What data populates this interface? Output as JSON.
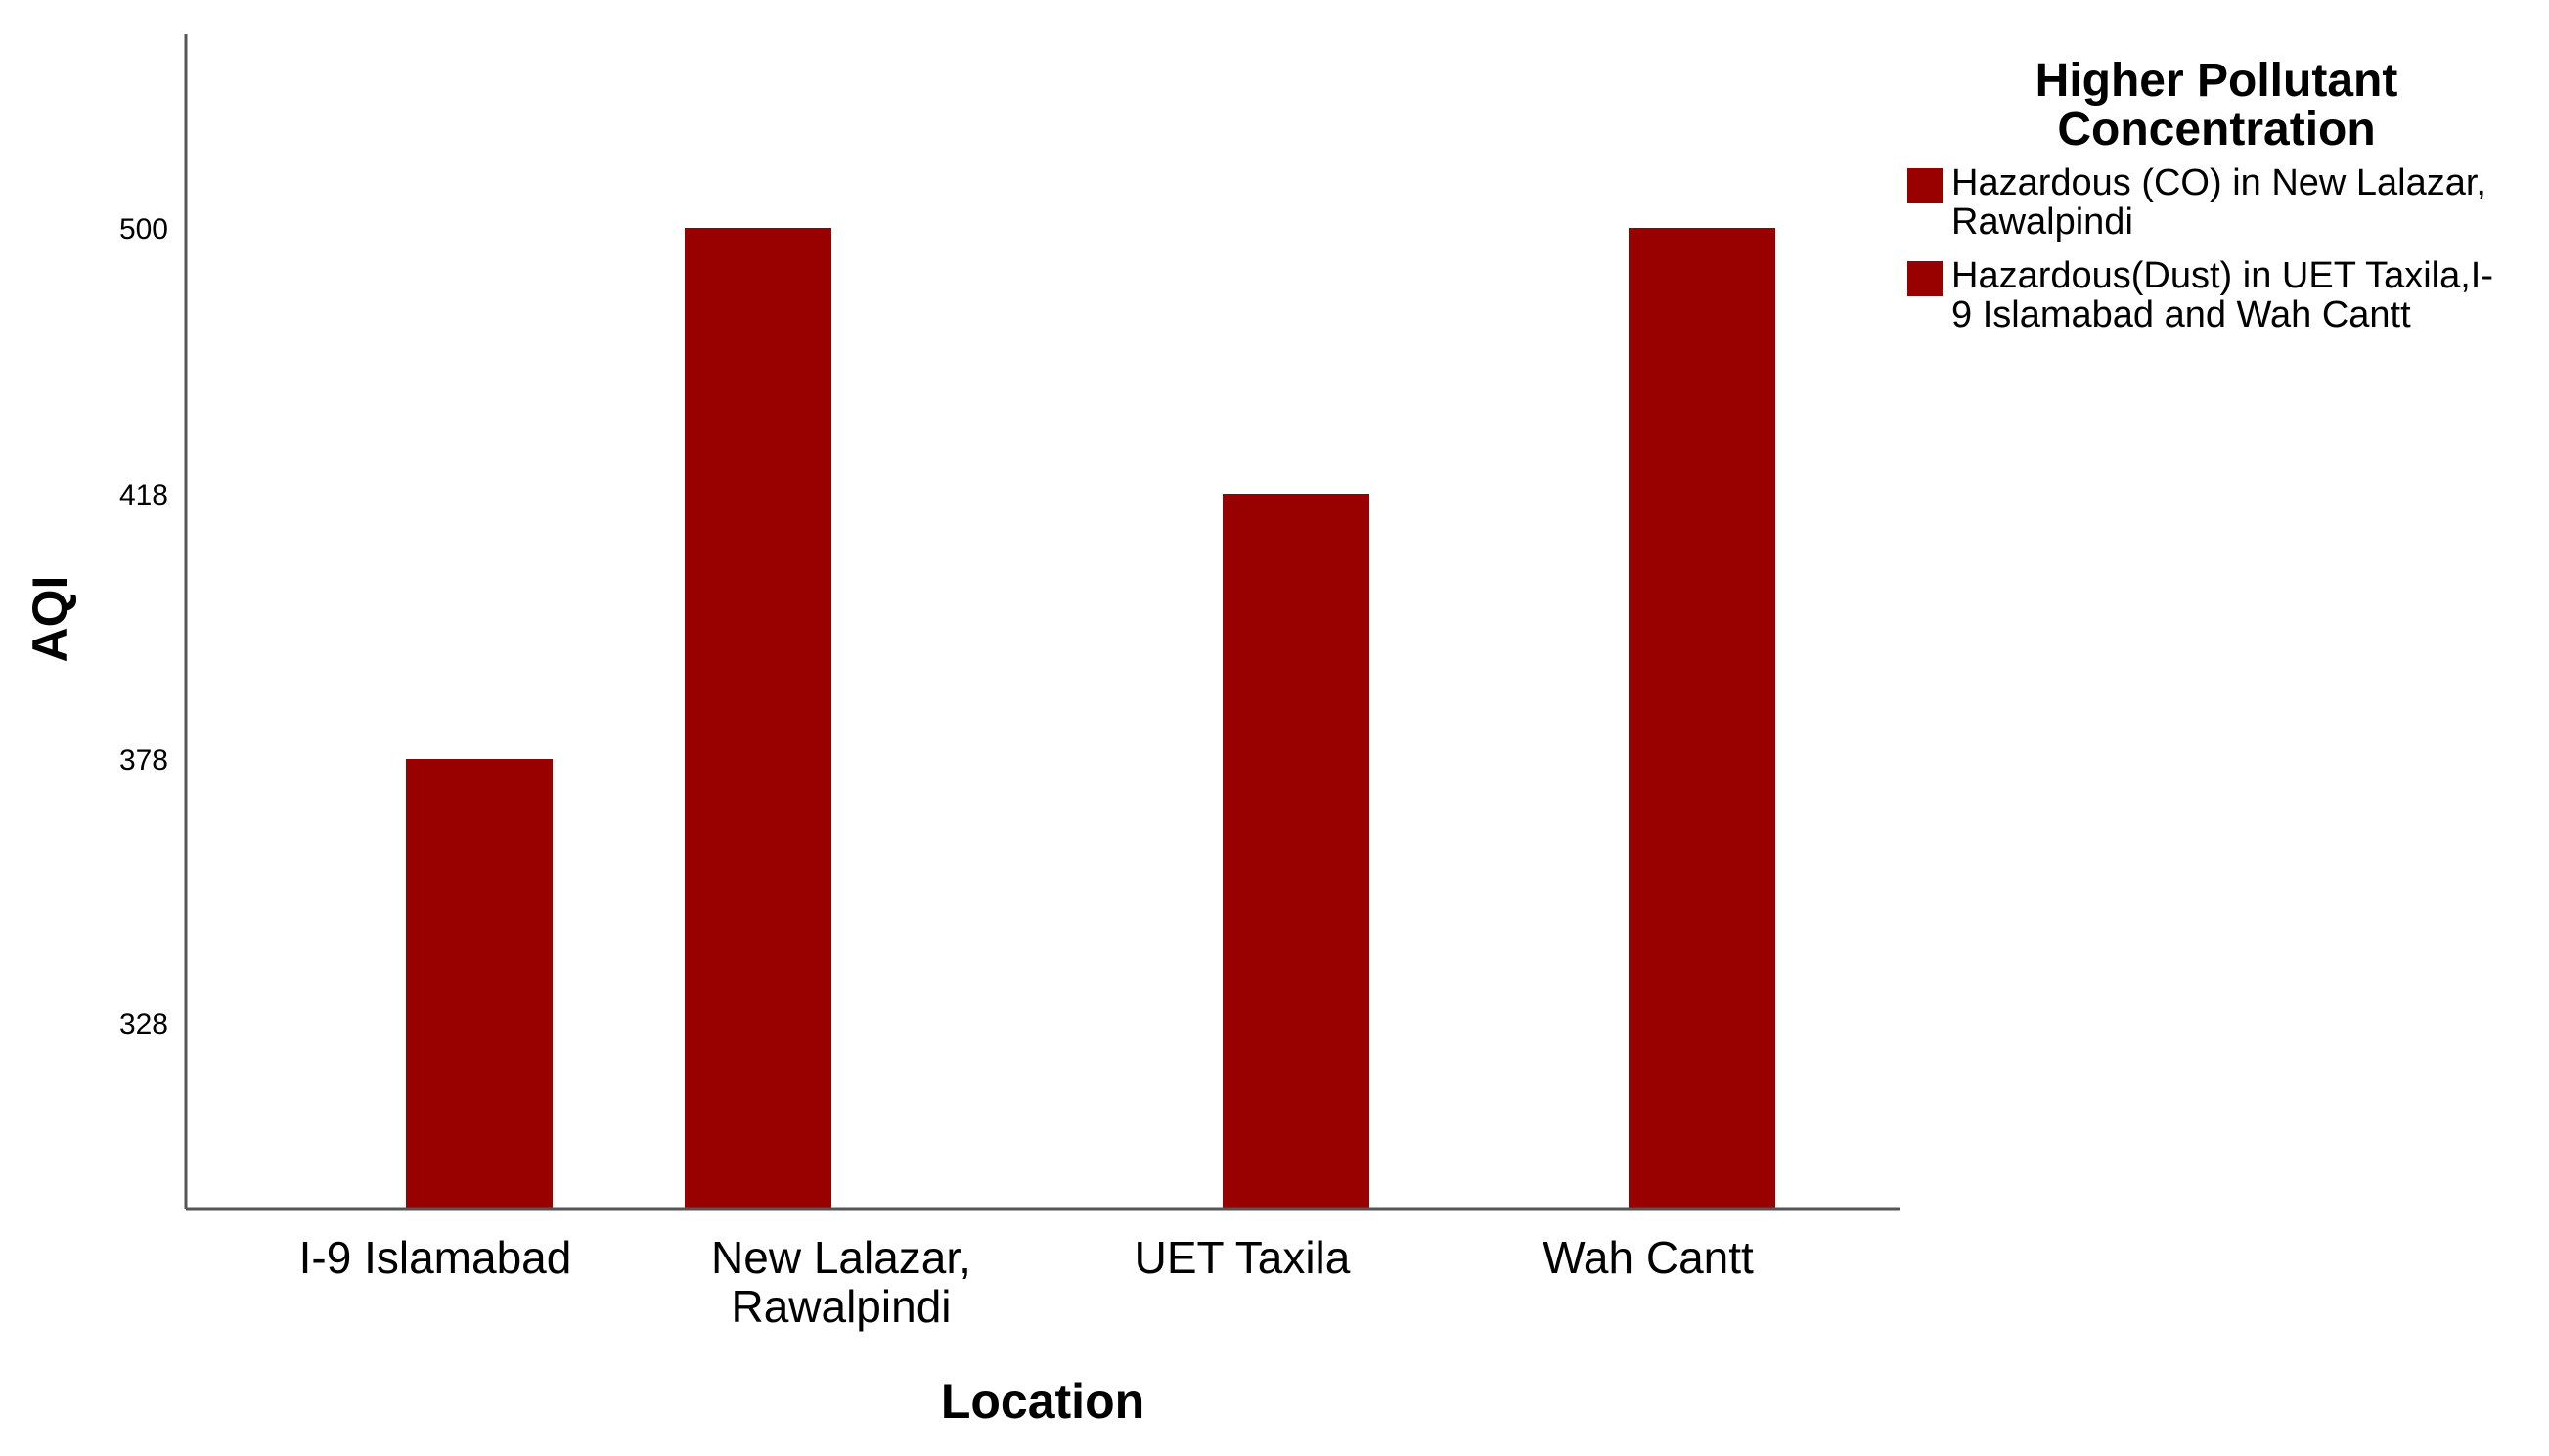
{
  "chart_data": {
    "type": "bar",
    "xlabel": "Location",
    "ylabel": "AQI",
    "categories": [
      "I-9 Islamabad",
      [
        "New Lalazar,",
        "Rawalpindi"
      ],
      "UET Taxila",
      "Wah Cantt"
    ],
    "series": [
      {
        "name": [
          "Hazardous (CO) in New Lalazar,",
          "Rawalpindi"
        ],
        "color": "#990000",
        "values": [
          null,
          500,
          null,
          null
        ]
      },
      {
        "name": [
          "Hazardous(Dust) in UET Taxila,I-",
          "9 Islamabad and Wah Cantt"
        ],
        "color": "#990000",
        "values": [
          378,
          null,
          418,
          500
        ]
      }
    ],
    "yticks": [
      328,
      378,
      418,
      500
    ],
    "ylim": [
      300,
      530
    ],
    "legend": {
      "title": [
        "Higher Pollutant",
        "Concentration"
      ],
      "position": "right"
    },
    "grid": false
  }
}
